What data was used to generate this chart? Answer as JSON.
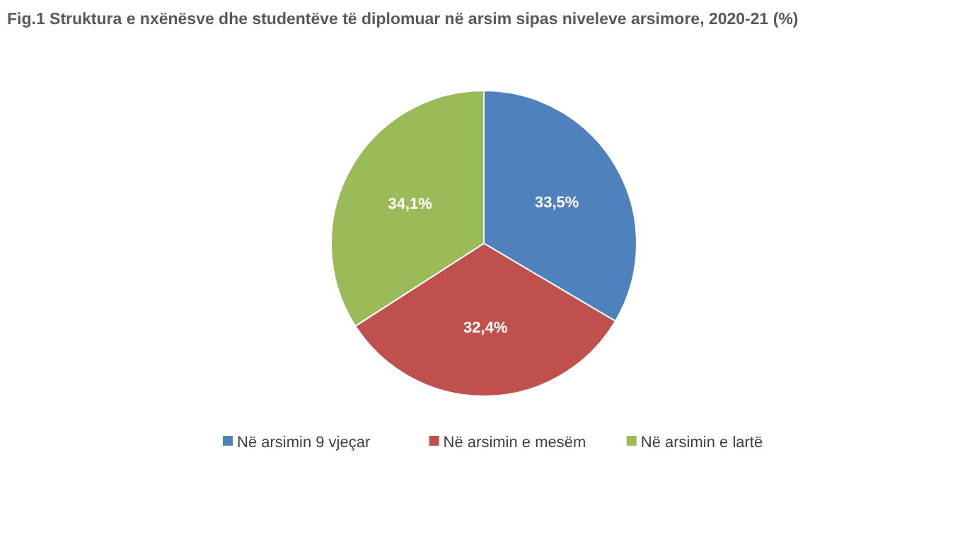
{
  "chart_data": {
    "type": "pie",
    "title": "Fig.1 Struktura e nxënësve dhe studentëve të diplomuar në arsim sipas niveleve arsimore, 2020-21 (%)",
    "categories": [
      "Në arsimin 9 vjeçar",
      "Në arsimin e mesëm",
      "Në arsimin e lartë"
    ],
    "values": [
      33.5,
      32.4,
      34.1
    ],
    "value_labels": [
      "33,5%",
      "32,4%",
      "34,1%"
    ],
    "colors": [
      "#4f81bd",
      "#c0504d",
      "#9bbb59"
    ],
    "legend": "bottom"
  }
}
